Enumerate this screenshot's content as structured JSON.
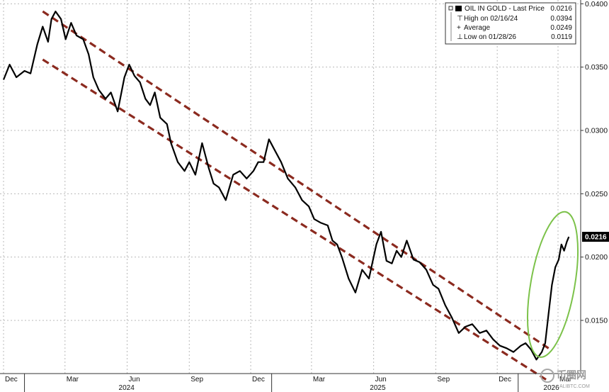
{
  "chart_data": {
    "type": "line",
    "title": "",
    "xlabel": "",
    "ylabel": "",
    "grid": true,
    "ylim": [
      0.0108,
      0.0403
    ],
    "y_ticks": [
      "0.0150",
      "0.0200",
      "0.0250",
      "0.0300",
      "0.0350",
      "0.0400"
    ],
    "x_tick_labels": [
      "Dec",
      "Mar",
      "Jun",
      "Sep",
      "Dec",
      "Mar",
      "Jun",
      "Sep",
      "Dec",
      "Mar"
    ],
    "year_labels": [
      "2024",
      "2025",
      "2026"
    ],
    "last_price_label": "0.0216",
    "legend": {
      "position": "top-right",
      "series_label": "OIL IN GOLD - Last Price",
      "series_value": "0.0216",
      "high_label": "High on 02/16/24",
      "high_value": "0.0394",
      "average_label": "Average",
      "average_value": "0.0249",
      "low_label": "Low on 01/28/26",
      "low_value": "0.0119"
    },
    "series": [
      {
        "name": "OIL IN GOLD",
        "x": [
          "2023-12-01",
          "2023-12-10",
          "2023-12-20",
          "2024-01-01",
          "2024-01-10",
          "2024-01-20",
          "2024-01-28",
          "2024-02-05",
          "2024-02-10",
          "2024-02-16",
          "2024-02-24",
          "2024-03-02",
          "2024-03-10",
          "2024-03-18",
          "2024-03-28",
          "2024-04-05",
          "2024-04-12",
          "2024-04-20",
          "2024-04-30",
          "2024-05-08",
          "2024-05-18",
          "2024-05-28",
          "2024-06-04",
          "2024-06-12",
          "2024-06-20",
          "2024-06-28",
          "2024-07-05",
          "2024-07-12",
          "2024-07-20",
          "2024-07-30",
          "2024-08-05",
          "2024-08-15",
          "2024-08-25",
          "2024-09-01",
          "2024-09-10",
          "2024-09-20",
          "2024-09-30",
          "2024-10-07",
          "2024-10-15",
          "2024-10-25",
          "2024-11-05",
          "2024-11-15",
          "2024-11-25",
          "2024-12-05",
          "2024-12-12",
          "2024-12-20",
          "2024-12-28",
          "2025-01-05",
          "2025-01-15",
          "2025-01-25",
          "2025-02-05",
          "2025-02-15",
          "2025-02-25",
          "2025-03-05",
          "2025-03-15",
          "2025-03-25",
          "2025-04-01",
          "2025-04-08",
          "2025-04-15",
          "2025-04-25",
          "2025-05-05",
          "2025-05-15",
          "2025-05-25",
          "2025-06-05",
          "2025-06-12",
          "2025-06-20",
          "2025-06-28",
          "2025-07-05",
          "2025-07-12",
          "2025-07-20",
          "2025-07-30",
          "2025-08-08",
          "2025-08-18",
          "2025-08-28",
          "2025-09-05",
          "2025-09-15",
          "2025-09-25",
          "2025-10-05",
          "2025-10-15",
          "2025-10-25",
          "2025-11-05",
          "2025-11-15",
          "2025-11-25",
          "2025-12-05",
          "2025-12-15",
          "2025-12-25",
          "2026-01-05",
          "2026-01-12",
          "2026-01-20",
          "2026-01-28",
          "2026-02-05",
          "2026-02-10",
          "2026-02-15",
          "2026-02-20",
          "2026-02-25",
          "2026-03-02",
          "2026-03-06",
          "2026-03-10",
          "2026-03-14",
          "2026-03-17"
        ],
        "values": [
          0.034,
          0.0352,
          0.0342,
          0.0347,
          0.0345,
          0.0368,
          0.0382,
          0.037,
          0.0388,
          0.0394,
          0.0388,
          0.0372,
          0.0385,
          0.0375,
          0.0372,
          0.036,
          0.0342,
          0.0332,
          0.0325,
          0.033,
          0.0315,
          0.0342,
          0.0352,
          0.0343,
          0.0338,
          0.0325,
          0.032,
          0.033,
          0.031,
          0.0305,
          0.029,
          0.0275,
          0.0268,
          0.0275,
          0.0265,
          0.029,
          0.027,
          0.0258,
          0.0255,
          0.0245,
          0.0265,
          0.0268,
          0.0262,
          0.0268,
          0.0275,
          0.0275,
          0.0293,
          0.0285,
          0.0275,
          0.0262,
          0.0255,
          0.0245,
          0.024,
          0.023,
          0.0227,
          0.0225,
          0.0213,
          0.021,
          0.02,
          0.0183,
          0.0172,
          0.019,
          0.0183,
          0.021,
          0.022,
          0.0197,
          0.0195,
          0.0205,
          0.02,
          0.0213,
          0.0198,
          0.0196,
          0.019,
          0.0178,
          0.0175,
          0.0162,
          0.0152,
          0.014,
          0.0145,
          0.0147,
          0.014,
          0.0142,
          0.0135,
          0.013,
          0.0128,
          0.0125,
          0.013,
          0.0132,
          0.0127,
          0.0119,
          0.0125,
          0.0132,
          0.0155,
          0.0178,
          0.0192,
          0.0198,
          0.021,
          0.0205,
          0.0212,
          0.0216
        ]
      }
    ],
    "channel_lines": [
      {
        "start": [
          "2024-01-28",
          0.0394
        ],
        "end": [
          "2026-02-15",
          0.0128
        ]
      },
      {
        "start": [
          "2024-01-28",
          0.0356
        ],
        "end": [
          "2026-02-15",
          0.0102
        ]
      }
    ],
    "highlight_ellipse": {
      "center": [
        "2026-02-18",
        0.0175
      ],
      "note": "recent spike"
    },
    "line_color": "#000000",
    "channel_color": "#8b2a1f",
    "highlight_color": "#7cc24a"
  },
  "watermark": {
    "brand": "币圈网",
    "sub": "ALIBTC.COM"
  }
}
